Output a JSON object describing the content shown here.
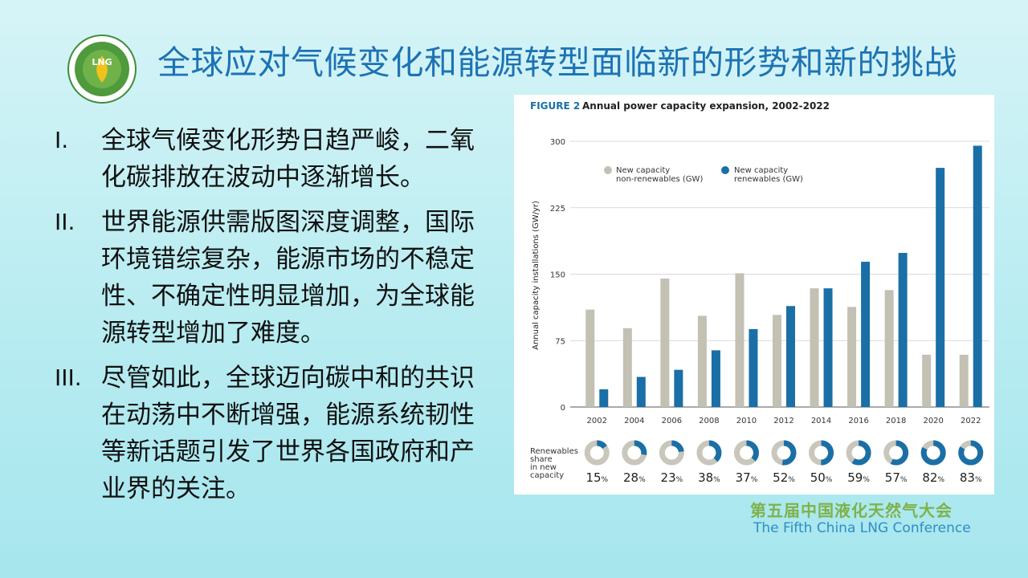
{
  "slide": {
    "title": "全球应对气候变化和能源转型面临新的形势和新的挑战",
    "bullets": [
      {
        "num": "I.",
        "text": "全球气候变化形势日趋严峻，二氧化碳排放在波动中逐渐增长。"
      },
      {
        "num": "II.",
        "text": "世界能源供需版图深度调整，国际环境错综复杂，能源市场的不稳定性、不确定性明显增加，为全球能源转型增加了难度。"
      },
      {
        "num": "III.",
        "text": "尽管如此，全球迈向碳中和的共识在动荡中不断增强，能源系统韧性等新话题引发了世界各国政府和产业界的关注。"
      }
    ],
    "logo": {
      "text": "LNG"
    },
    "conference_cn": "第五届中国液化天然气大会",
    "conference_en": "The Fifth China LNG Conference"
  },
  "colors": {
    "title": "#1d73b3",
    "renewables": "#1a6fa6",
    "non_renewables": "#c3c0b4",
    "donut_gray": "#c9c6bb"
  },
  "chart_data": {
    "type": "bar",
    "figure_label": "FIGURE 2",
    "title": "Annual power capacity expansion, 2002-2022",
    "ylabel": "Annual capacity installations (GW/yr)",
    "xlabel": "",
    "ylim": [
      0,
      300
    ],
    "yticks": [
      0,
      75,
      150,
      225,
      300
    ],
    "grid": true,
    "legend_position": "top-left",
    "categories": [
      "2002",
      "2004",
      "2006",
      "2008",
      "2010",
      "2012",
      "2014",
      "2016",
      "2018",
      "2020",
      "2022"
    ],
    "series": [
      {
        "name": "New capacity non-renewables (GW)",
        "legend_line1": "New capacity",
        "legend_line2": "non-renewables (GW)",
        "values": [
          110,
          89,
          145,
          103,
          151,
          104,
          134,
          113,
          132,
          59,
          59
        ]
      },
      {
        "name": "New capacity renewables (GW)",
        "legend_line1": "New capacity",
        "legend_line2": "renewables (GW)",
        "values": [
          20,
          34,
          42,
          64,
          88,
          114,
          134,
          164,
          174,
          270,
          295
        ]
      }
    ],
    "share": {
      "label_lines": [
        "Renewables",
        "share",
        "in new",
        "capacity"
      ],
      "values": [
        15,
        28,
        23,
        38,
        37,
        52,
        50,
        59,
        57,
        82,
        83
      ],
      "unit": "%"
    }
  }
}
